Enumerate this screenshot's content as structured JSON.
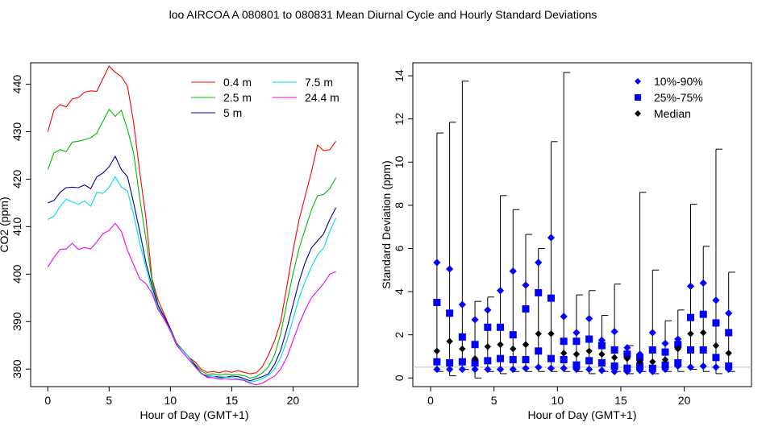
{
  "title": "loo   AIRCOA A   080801 to 080831   Mean Diurnal Cycle and Hourly Standard Deviations",
  "chart_data": [
    {
      "type": "line",
      "xlabel": "Hour of Day (GMT+1)",
      "ylabel": "CO2 (ppm)",
      "xlim": [
        -1.4,
        25.3
      ],
      "ylim": [
        376.3,
        444.5
      ],
      "xticks": [
        0,
        5,
        10,
        15,
        20
      ],
      "yticks": [
        380,
        390,
        400,
        410,
        420,
        430,
        440
      ],
      "legend_position": "top-right",
      "x": [
        0,
        0.5,
        1,
        1.5,
        2,
        2.5,
        3,
        3.5,
        4,
        4.5,
        5,
        5.5,
        6,
        6.5,
        7,
        7.5,
        8,
        8.5,
        9,
        9.5,
        10,
        10.5,
        11,
        11.5,
        12,
        12.5,
        13,
        13.5,
        14,
        14.5,
        15,
        15.5,
        16,
        16.5,
        17,
        17.5,
        18,
        18.5,
        19,
        19.5,
        20,
        20.5,
        21,
        21.5,
        22,
        22.5,
        23,
        23.5
      ],
      "series": [
        {
          "name": "0.4 m",
          "color": "#ff0000",
          "values": [
            430.0,
            434.5,
            435.7,
            435.2,
            436.9,
            437.2,
            438.3,
            438.6,
            438.5,
            441.2,
            443.8,
            442.5,
            441.6,
            439.6,
            432.0,
            421.5,
            412.0,
            399.0,
            394.5,
            391.5,
            388.5,
            385.5,
            384.0,
            382.5,
            381.5,
            380.0,
            379.3,
            379.5,
            379.2,
            379.6,
            379.3,
            379.7,
            379.3,
            379.0,
            379.2,
            380.5,
            383.0,
            386.0,
            390.0,
            397.5,
            405.0,
            411.5,
            416.5,
            421.5,
            427.2,
            426.0,
            426.2,
            428.0
          ]
        },
        {
          "name": "2.5 m",
          "color": "#00bb00",
          "values": [
            422.0,
            425.5,
            426.2,
            425.8,
            427.8,
            428.0,
            428.3,
            428.7,
            429.7,
            432.2,
            434.7,
            433.2,
            434.5,
            430.5,
            425.5,
            416.0,
            407.5,
            398.5,
            393.5,
            391.0,
            388.5,
            385.0,
            384.0,
            382.5,
            381.0,
            379.6,
            378.9,
            379.0,
            378.7,
            379.0,
            378.8,
            378.8,
            378.6,
            378.1,
            378.4,
            379.2,
            380.5,
            383.0,
            387.5,
            394.0,
            400.0,
            405.5,
            409.5,
            413.5,
            416.5,
            416.8,
            418.0,
            420.3
          ]
        },
        {
          "name": "5 m",
          "color": "#000099",
          "values": [
            415.0,
            415.5,
            417.2,
            418.2,
            418.3,
            418.2,
            418.8,
            418.0,
            420.5,
            421.3,
            422.6,
            424.8,
            422.0,
            420.5,
            415.0,
            409.0,
            402.5,
            397.5,
            393.3,
            391.0,
            388.5,
            385.3,
            384.0,
            382.5,
            380.8,
            379.1,
            378.5,
            378.5,
            378.3,
            378.3,
            378.5,
            378.4,
            378.0,
            377.5,
            378.0,
            378.4,
            379.0,
            381.0,
            384.0,
            388.5,
            393.5,
            398.5,
            402.5,
            405.5,
            407.0,
            408.5,
            411.5,
            414.0
          ]
        },
        {
          "name": "7.5 m",
          "color": "#00dddd",
          "values": [
            411.5,
            412.2,
            414.2,
            415.8,
            415.2,
            414.7,
            415.4,
            414.3,
            417.2,
            417.0,
            418.3,
            420.5,
            418.3,
            417.5,
            412.5,
            406.5,
            401.5,
            396.5,
            393.0,
            390.5,
            388.2,
            385.2,
            384.0,
            382.5,
            380.5,
            379.0,
            378.3,
            378.5,
            378.0,
            378.3,
            378.2,
            378.0,
            377.7,
            377.2,
            377.5,
            378.0,
            378.7,
            380.0,
            382.5,
            386.0,
            390.5,
            395.0,
            398.5,
            401.5,
            404.0,
            405.5,
            409.0,
            411.8
          ]
        },
        {
          "name": "24.4 m",
          "color": "#ee00ee",
          "values": [
            401.5,
            403.5,
            405.2,
            405.3,
            406.5,
            405.2,
            405.6,
            405.3,
            406.8,
            408.5,
            409.2,
            410.7,
            409.0,
            405.0,
            402.0,
            399.0,
            398.0,
            396.0,
            392.5,
            390.5,
            388.0,
            385.0,
            383.5,
            382.0,
            380.5,
            379.2,
            378.2,
            378.2,
            377.9,
            378.0,
            377.8,
            377.8,
            377.6,
            377.0,
            376.7,
            377.0,
            377.8,
            378.5,
            380.0,
            382.5,
            386.0,
            389.5,
            392.5,
            395.0,
            396.5,
            398.0,
            400.0,
            400.5
          ]
        }
      ]
    },
    {
      "type": "scatter",
      "xlabel": "Hour of Day (GMT+1)",
      "ylabel": "Standard Deviation (ppm)",
      "xlim": [
        -1.4,
        25.3
      ],
      "ylim": [
        -0.4,
        14.6
      ],
      "xticks": [
        0,
        5,
        10,
        15,
        20
      ],
      "yticks": [
        0,
        2,
        4,
        6,
        8,
        10,
        12,
        14
      ],
      "legend_position": "top-right",
      "reference_line": 0.5,
      "x": [
        0.5,
        1.5,
        2.5,
        3.5,
        4.5,
        5.5,
        6.5,
        7.5,
        8.5,
        9.5,
        10.5,
        11.5,
        12.5,
        13.5,
        14.5,
        15.5,
        16.5,
        17.5,
        18.5,
        19.5,
        20.5,
        21.5,
        22.5,
        23.5
      ],
      "whiskers": {
        "low": [
          0.3,
          0.1,
          0.4,
          0.0,
          0.3,
          0.2,
          0.3,
          0.3,
          0.3,
          0.3,
          0.3,
          0.3,
          0.2,
          0.3,
          0.3,
          0.2,
          0.3,
          0.2,
          0.3,
          0.3,
          0.4,
          0.3,
          0.2,
          0.3
        ],
        "high": [
          11.35,
          11.85,
          13.75,
          3.55,
          3.75,
          8.45,
          7.8,
          6.65,
          6.0,
          10.95,
          14.15,
          3.85,
          4.05,
          2.9,
          4.35,
          1.5,
          8.6,
          5.0,
          2.65,
          3.15,
          8.05,
          6.1,
          10.6,
          4.9
        ]
      },
      "series": [
        {
          "name": "10%-90%",
          "marker": "diamond",
          "color": "#0000ff",
          "high": [
            5.35,
            5.05,
            3.4,
            2.7,
            3.15,
            4.05,
            4.95,
            4.3,
            5.35,
            6.5,
            2.85,
            2.1,
            2.75,
            1.75,
            2.15,
            1.4,
            1.1,
            2.1,
            1.6,
            1.8,
            4.25,
            4.4,
            3.6,
            3.0
          ],
          "low": [
            0.4,
            0.4,
            0.4,
            0.4,
            0.4,
            0.4,
            0.4,
            0.45,
            0.5,
            0.45,
            0.45,
            0.4,
            0.4,
            0.35,
            0.3,
            0.3,
            0.35,
            0.3,
            0.4,
            0.55,
            0.5,
            0.55,
            0.5,
            0.4
          ]
        },
        {
          "name": "25%-75%",
          "marker": "square",
          "color": "#0000ff",
          "high": [
            3.5,
            3.0,
            1.9,
            1.55,
            2.35,
            2.35,
            2.0,
            3.2,
            3.95,
            3.7,
            1.7,
            1.7,
            1.8,
            1.5,
            1.3,
            1.1,
            0.95,
            1.3,
            1.2,
            1.55,
            2.8,
            2.95,
            2.55,
            2.1
          ],
          "low": [
            0.75,
            0.7,
            0.75,
            0.7,
            0.8,
            0.9,
            0.85,
            0.85,
            1.25,
            0.9,
            0.85,
            0.6,
            0.8,
            0.7,
            0.55,
            0.45,
            0.55,
            0.45,
            0.6,
            0.7,
            1.3,
            1.3,
            0.95,
            0.55
          ]
        },
        {
          "name": "Median",
          "marker": "diamond",
          "color": "#000000",
          "values": [
            1.25,
            1.7,
            1.35,
            0.9,
            1.45,
            1.55,
            1.35,
            1.55,
            2.05,
            2.05,
            1.15,
            1.1,
            1.25,
            1.1,
            0.95,
            0.9,
            0.75,
            0.75,
            0.85,
            1.35,
            2.05,
            2.1,
            1.5,
            1.15
          ]
        }
      ]
    }
  ]
}
